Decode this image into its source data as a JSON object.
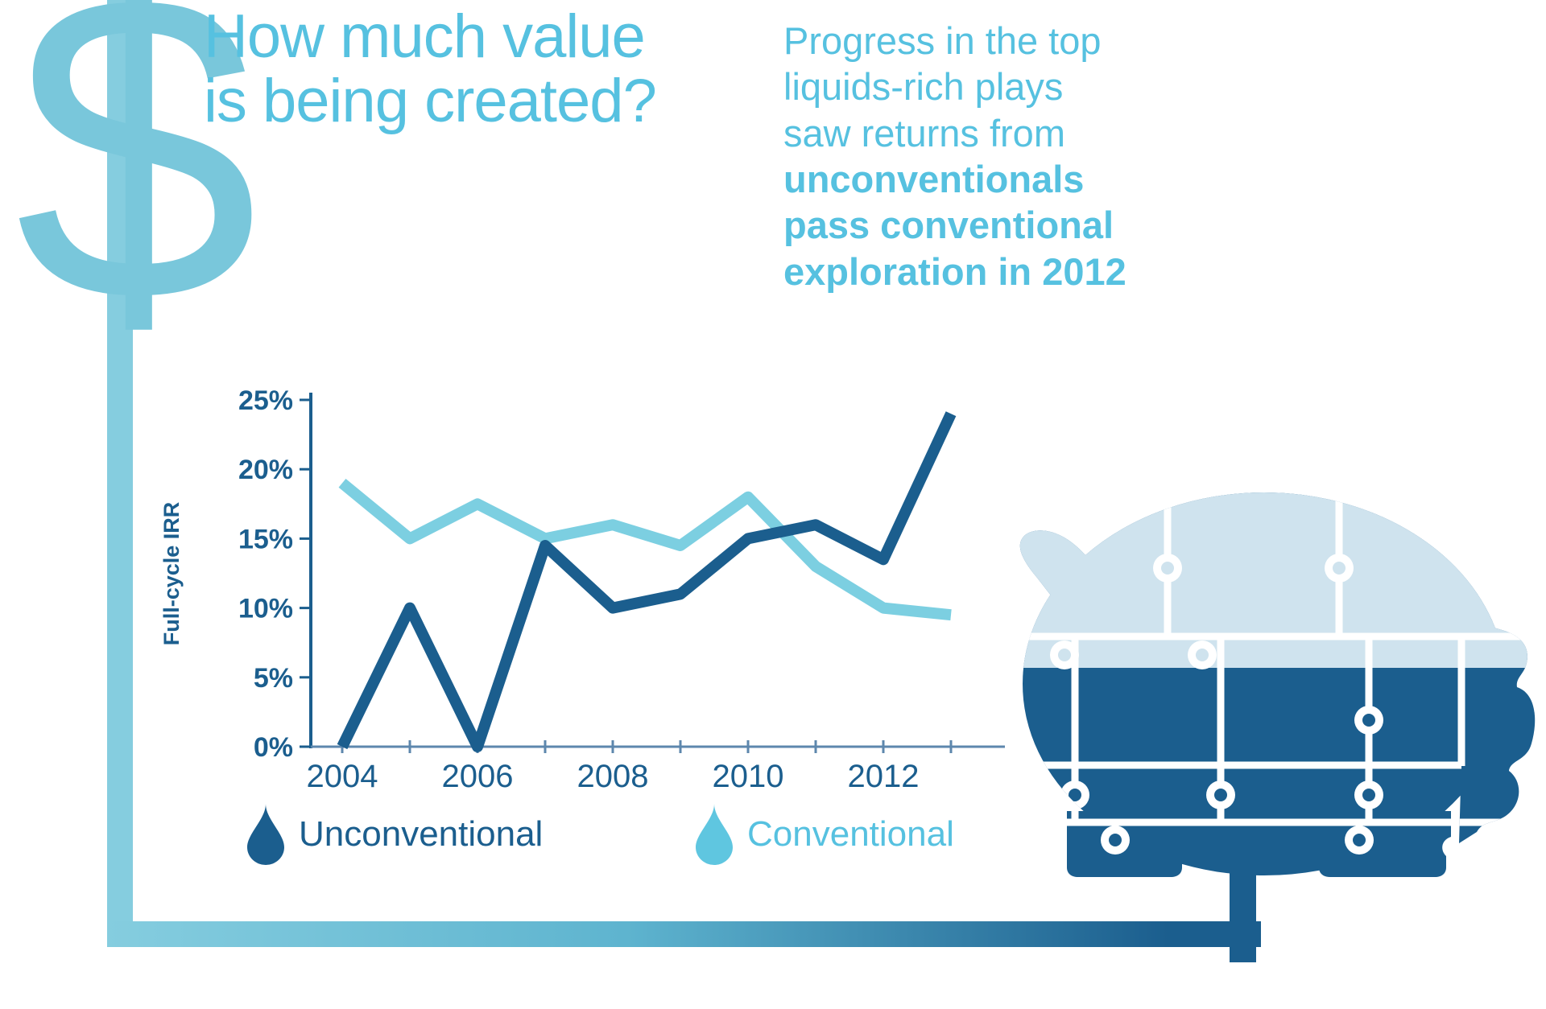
{
  "header": {
    "dollar_symbol": "$",
    "title_lines": [
      "How much value",
      "is being created?"
    ]
  },
  "callout": {
    "regular_lines": [
      "Progress in the top",
      "liquids-rich plays",
      "saw returns from"
    ],
    "bold_lines": [
      "unconventionals",
      "pass conventional",
      "exploration in 2012"
    ]
  },
  "chart_data": {
    "type": "line",
    "title": "",
    "xlabel": "",
    "ylabel": "Full-cycle IRR",
    "x": [
      2004,
      2005,
      2006,
      2007,
      2008,
      2009,
      2010,
      2011,
      2012,
      2013
    ],
    "x_tick_labels": [
      "2004",
      "2006",
      "2008",
      "2010",
      "2012"
    ],
    "y_tick_labels": [
      "0%",
      "5%",
      "10%",
      "15%",
      "20%",
      "25%"
    ],
    "ylim": [
      0,
      25
    ],
    "grid": false,
    "legend_position": "bottom",
    "series": [
      {
        "name": "Unconventional",
        "color": "#1b5e8e",
        "values": [
          0,
          10,
          0,
          14.5,
          10,
          11,
          15,
          16,
          13.5,
          24
        ]
      },
      {
        "name": "Conventional",
        "color": "#7ccfe1",
        "values": [
          19,
          15,
          17.5,
          15,
          16,
          14.5,
          18,
          13,
          10,
          9.5
        ]
      }
    ]
  },
  "legend": {
    "items": [
      {
        "label": "Unconventional",
        "color": "#1b5e8e"
      },
      {
        "label": "Conventional",
        "color": "#5fc6e0"
      }
    ]
  },
  "illustration": {
    "name": "piggy-bank-puzzle",
    "top_color": "#cfe3ee",
    "bottom_color": "#1b5e8e"
  },
  "colors": {
    "accent-light": "#56c1e0",
    "line-light": "#7ccfe1",
    "dark-blue": "#1b5e8e",
    "pale-pig": "#cfe3ee",
    "frame-light": "#85cddf",
    "frame-mid": "#5eb4cf",
    "dollar": "#79c7db",
    "axis-muted": "#5d87ad",
    "droplet-light": "#5fc6e0"
  }
}
